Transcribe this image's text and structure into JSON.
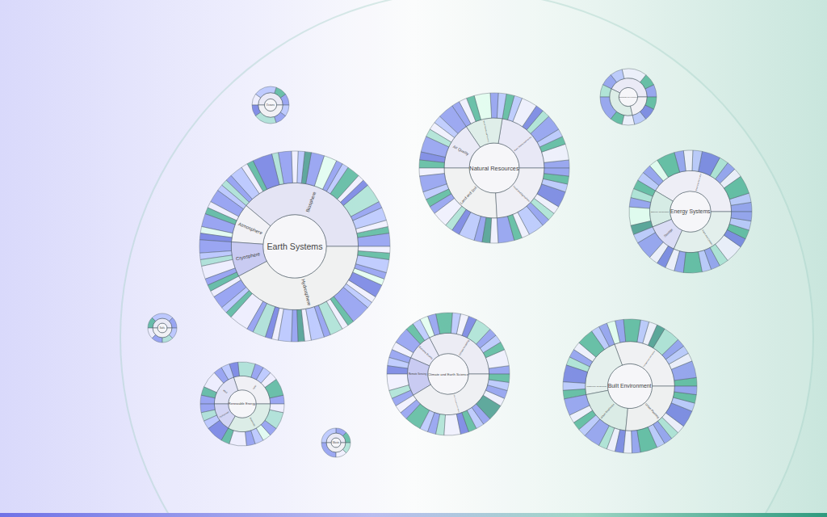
{
  "chart_data": [
    {
      "type": "sunburst",
      "root": "Earth Systems",
      "color": "#f6f6f9",
      "branches": [
        {
          "label": "Biosphere",
          "color": "#e4e4f4",
          "values": [
            2,
            1,
            1,
            2,
            1,
            3,
            1,
            1,
            2,
            1,
            1,
            2,
            2,
            1,
            1,
            1,
            2,
            1,
            3,
            1,
            1,
            2,
            1,
            1
          ],
          "colors": [
            "#78e",
            "#3a8",
            "#eef",
            "#abf",
            "#78e",
            "#9dc",
            "#56d",
            "#eef",
            "#3a8",
            "#abf",
            "#78e",
            "#dfe",
            "#78e",
            "#287",
            "#abf",
            "#eef",
            "#78e",
            "#9dc",
            "#56d",
            "#3a8",
            "#eef",
            "#abf",
            "#78e",
            "#9dc"
          ]
        },
        {
          "label": "Atmosphere",
          "color": "#f2f2f6",
          "values": [
            1,
            2,
            1,
            1,
            2,
            1,
            1
          ],
          "colors": [
            "#abf",
            "#78e",
            "#eef",
            "#3a8",
            "#78e",
            "#dfe",
            "#56d"
          ]
        },
        {
          "label": "Cryosphere",
          "color": "#c9cbf2",
          "values": [
            2,
            1,
            1,
            2,
            1,
            1
          ],
          "colors": [
            "#78e",
            "#abf",
            "#9dc",
            "#eef",
            "#78e",
            "#3a8"
          ]
        },
        {
          "label": "Hydrosphere",
          "color": "#f0f1f1",
          "values": [
            1,
            2,
            1,
            1,
            3,
            1,
            2,
            1,
            1,
            2,
            1,
            1,
            1,
            2,
            1,
            2,
            1,
            1,
            3,
            1,
            1,
            2,
            1,
            1,
            2,
            1,
            1
          ],
          "colors": [
            "#eef",
            "#78e",
            "#abf",
            "#3a8",
            "#eef",
            "#78e",
            "#9dc",
            "#56d",
            "#eef",
            "#abf",
            "#78e",
            "#287",
            "#eef",
            "#abf",
            "#78e",
            "#9dc",
            "#eef",
            "#3a8",
            "#78e",
            "#abf",
            "#eef",
            "#56d",
            "#dfe",
            "#78e",
            "#abf",
            "#3a8",
            "#eef"
          ]
        }
      ]
    },
    {
      "type": "sunburst",
      "root": "Natural Resources",
      "color": "#f6f6f9",
      "branches": [
        {
          "label": "Water, Mining and Forestry",
          "color": "#e8e8f6",
          "values": [
            1,
            2,
            1,
            1,
            2,
            1,
            1,
            2,
            1,
            1
          ],
          "colors": [
            "#78e",
            "#eef",
            "#3a8",
            "#abf",
            "#78e",
            "#9dc",
            "#56d",
            "#eef",
            "#abf",
            "#3a8"
          ]
        },
        {
          "label": "Natural Hazards and Recovery",
          "color": "#dfeee9",
          "values": [
            1,
            1,
            2,
            1,
            1,
            1
          ],
          "colors": [
            "#abf",
            "#78e",
            "#dfe",
            "#3a8",
            "#eef",
            "#78e"
          ]
        },
        {
          "label": "Air Quality",
          "color": "#eaeaf6",
          "values": [
            2,
            1,
            1,
            1,
            2,
            1,
            1
          ],
          "colors": [
            "#78e",
            "#abf",
            "#eef",
            "#9dc",
            "#78e",
            "#56d",
            "#3a8"
          ]
        },
        {
          "label": "Land and Soil",
          "color": "#f1f2f2",
          "values": [
            1,
            2,
            1,
            1,
            1,
            2,
            1,
            1,
            2,
            1,
            1,
            1
          ],
          "colors": [
            "#eef",
            "#78e",
            "#abf",
            "#3a8",
            "#78e",
            "#eef",
            "#9dc",
            "#56d",
            "#abf",
            "#78e",
            "#287",
            "#eef"
          ]
        },
        {
          "label": "Food and Agriculture",
          "color": "#efeff5",
          "values": [
            2,
            1,
            1,
            2,
            1,
            1,
            1,
            2,
            1,
            1,
            1
          ],
          "colors": [
            "#78e",
            "#3a8",
            "#eef",
            "#abf",
            "#78e",
            "#9dc",
            "#eef",
            "#56d",
            "#abf",
            "#3a8",
            "#78e"
          ]
        }
      ]
    },
    {
      "type": "sunburst",
      "root": "Energy Systems",
      "color": "#f6f6f9",
      "branches": [
        {
          "label": "Electricity Generation",
          "color": "#eeeef6",
          "values": [
            1,
            1,
            2,
            1,
            1,
            1,
            2,
            1,
            1,
            1,
            2,
            1,
            1,
            1
          ],
          "colors": [
            "#78e",
            "#abf",
            "#3a8",
            "#eef",
            "#78e",
            "#9dc",
            "#56d",
            "#abf",
            "#eef",
            "#78e",
            "#3a8",
            "#dfe",
            "#78e",
            "#abf"
          ]
        },
        {
          "label": "Efficiency and Demand",
          "color": "#d6ece5",
          "values": [
            1,
            1,
            1,
            2,
            1
          ],
          "colors": [
            "#3a8",
            "#9dc",
            "#78e",
            "#dfe",
            "#287"
          ]
        },
        {
          "label": "Storage",
          "color": "#dadcf5",
          "values": [
            1,
            2,
            1,
            1
          ],
          "colors": [
            "#abf",
            "#78e",
            "#eef",
            "#56d"
          ]
        },
        {
          "label": "Fuels and Carbon",
          "color": "#e3efec",
          "values": [
            1,
            1,
            2,
            1,
            1,
            1,
            2,
            1,
            1,
            1,
            1
          ],
          "colors": [
            "#eef",
            "#78e",
            "#3a8",
            "#abf",
            "#78e",
            "#9dc",
            "#eef",
            "#56d",
            "#3a8",
            "#abf",
            "#78e"
          ]
        }
      ]
    },
    {
      "type": "sunburst",
      "root": "Climate and Earth Science",
      "color": "#f6f6f9",
      "branches": [
        {
          "label": "Climate Modeling",
          "color": "#ececf4",
          "values": [
            1,
            2,
            1,
            1,
            1,
            2,
            1,
            1,
            1,
            2,
            1,
            1
          ],
          "colors": [
            "#78e",
            "#eef",
            "#3a8",
            "#abf",
            "#78e",
            "#9dc",
            "#56d",
            "#eef",
            "#abf",
            "#3a8",
            "#78e",
            "#dfe"
          ]
        },
        {
          "label": "Extreme Events",
          "color": "#e8e8f8",
          "values": [
            1,
            1,
            2,
            1
          ],
          "colors": [
            "#abf",
            "#3a8",
            "#78e",
            "#eef"
          ]
        },
        {
          "label": "Remote Sensing",
          "color": "#c9cbf2",
          "values": [
            1,
            1,
            1,
            2,
            1,
            1
          ],
          "colors": [
            "#78e",
            "#abf",
            "#56d",
            "#eef",
            "#9dc",
            "#78e"
          ]
        },
        {
          "label": "Data Processing and Analysis",
          "color": "#eff0f3",
          "values": [
            1,
            1,
            2,
            1,
            1,
            1,
            2,
            1,
            1,
            1,
            1,
            2,
            1,
            1,
            1,
            1
          ],
          "colors": [
            "#eef",
            "#78e",
            "#3a8",
            "#abf",
            "#78e",
            "#9dc",
            "#eef",
            "#56d",
            "#3a8",
            "#abf",
            "#78e",
            "#287",
            "#eef",
            "#78e",
            "#abf",
            "#3a8"
          ]
        }
      ]
    },
    {
      "type": "sunburst",
      "root": "Built Environment",
      "color": "#f6f6f9",
      "branches": [
        {
          "label": "Transportation and Mobility",
          "color": "#f0f1f3",
          "values": [
            1,
            2,
            1,
            1,
            1,
            2,
            1,
            1,
            1,
            2,
            1,
            1
          ],
          "colors": [
            "#3a8",
            "#78e",
            "#eef",
            "#abf",
            "#78e",
            "#9dc",
            "#287",
            "#eef",
            "#abf",
            "#3a8",
            "#78e",
            "#dfe"
          ]
        },
        {
          "label": "Infrastructure and Buildings",
          "color": "#e5f0ed",
          "values": [
            1,
            1,
            2,
            1,
            1,
            1,
            2,
            1,
            1
          ],
          "colors": [
            "#78e",
            "#abf",
            "#3a8",
            "#eef",
            "#78e",
            "#9dc",
            "#56d",
            "#abf",
            "#3a8"
          ]
        },
        {
          "label": "Urban Resilience",
          "color": "#dbece6",
          "values": [
            2,
            1,
            1,
            1,
            2,
            1,
            1,
            1
          ],
          "colors": [
            "#78e",
            "#eef",
            "#3a8",
            "#abf",
            "#78e",
            "#9dc",
            "#eef",
            "#56d"
          ]
        },
        {
          "label": "Urban Planning",
          "color": "#eef0f0",
          "values": [
            1,
            1,
            2,
            1,
            1,
            1,
            1,
            2,
            1,
            1,
            1
          ],
          "colors": [
            "#eef",
            "#78e",
            "#3a8",
            "#abf",
            "#78e",
            "#9dc",
            "#eef",
            "#56d",
            "#abf",
            "#3a8",
            "#78e"
          ]
        }
      ]
    },
    {
      "type": "sunburst",
      "root": "Renewable Energy",
      "color": "#f6f6f9",
      "branches": [
        {
          "label": "Solar",
          "color": "#f0f0f5",
          "values": [
            1,
            2,
            1,
            1,
            1,
            2,
            1
          ],
          "colors": [
            "#78e",
            "#3a8",
            "#eef",
            "#abf",
            "#78e",
            "#9dc",
            "#56d"
          ]
        },
        {
          "label": "Wind",
          "color": "#e2e3f6",
          "values": [
            1,
            1,
            2,
            1,
            1
          ],
          "colors": [
            "#abf",
            "#78e",
            "#eef",
            "#3a8",
            "#78e"
          ]
        },
        {
          "label": "Hydropower",
          "color": "#d3d5f4",
          "values": [
            1,
            1,
            1,
            2
          ],
          "colors": [
            "#78e",
            "#9dc",
            "#abf",
            "#56d"
          ]
        },
        {
          "label": "Bioenergy",
          "color": "#dcede7",
          "values": [
            1,
            2,
            1,
            1,
            1,
            1,
            2,
            1
          ],
          "colors": [
            "#3a8",
            "#eef",
            "#78e",
            "#abf",
            "#dfe",
            "#78e",
            "#9dc",
            "#eef"
          ]
        }
      ]
    },
    {
      "type": "sunburst",
      "root": "Oceans",
      "color": "#f6f6f9",
      "branches": [
        {
          "label": null,
          "color": "#eaeaf6",
          "values": [
            1,
            1,
            2,
            1
          ],
          "colors": [
            "#78e",
            "#3a8",
            "#abf",
            "#eef"
          ]
        },
        {
          "label": null,
          "color": "#f1f1f5",
          "values": [
            1,
            2,
            1,
            1
          ],
          "colors": [
            "#56d",
            "#9dc",
            "#78e",
            "#abf"
          ]
        }
      ]
    },
    {
      "type": "sunburst",
      "root": "Sustainable Development",
      "color": "#f6f6f9",
      "branches": [
        {
          "label": null,
          "color": "#eaeaf6",
          "values": [
            1,
            1,
            2,
            1,
            1
          ],
          "colors": [
            "#78e",
            "#3a8",
            "#eef",
            "#abf",
            "#78e"
          ]
        },
        {
          "label": null,
          "color": "#dcede7",
          "values": [
            1,
            2,
            1,
            1
          ],
          "colors": [
            "#9dc",
            "#78e",
            "#3a8",
            "#eef"
          ]
        },
        {
          "label": null,
          "color": "#f1f1f5",
          "values": [
            1,
            1,
            1
          ],
          "colors": [
            "#abf",
            "#56d",
            "#3a8"
          ]
        }
      ]
    },
    {
      "type": "sunburst",
      "root": "Soils",
      "color": "#f6f6f9",
      "branches": [
        {
          "label": null,
          "color": "#eaeaf6",
          "values": [
            1,
            2,
            1
          ],
          "colors": [
            "#78e",
            "#abf",
            "#3a8"
          ]
        },
        {
          "label": null,
          "color": "#f1f1f5",
          "values": [
            1,
            1,
            1,
            1
          ],
          "colors": [
            "#eef",
            "#78e",
            "#9dc",
            "#abf"
          ]
        }
      ]
    },
    {
      "type": "sunburst",
      "root": "Waste",
      "color": "#f6f6f9",
      "branches": [
        {
          "label": null,
          "color": "#eaeaf6",
          "values": [
            1,
            1,
            2
          ],
          "colors": [
            "#3a8",
            "#78e",
            "#abf"
          ]
        },
        {
          "label": null,
          "color": "#f1f1f5",
          "values": [
            2,
            1,
            1
          ],
          "colors": [
            "#78e",
            "#eef",
            "#9dc"
          ]
        }
      ]
    }
  ]
}
